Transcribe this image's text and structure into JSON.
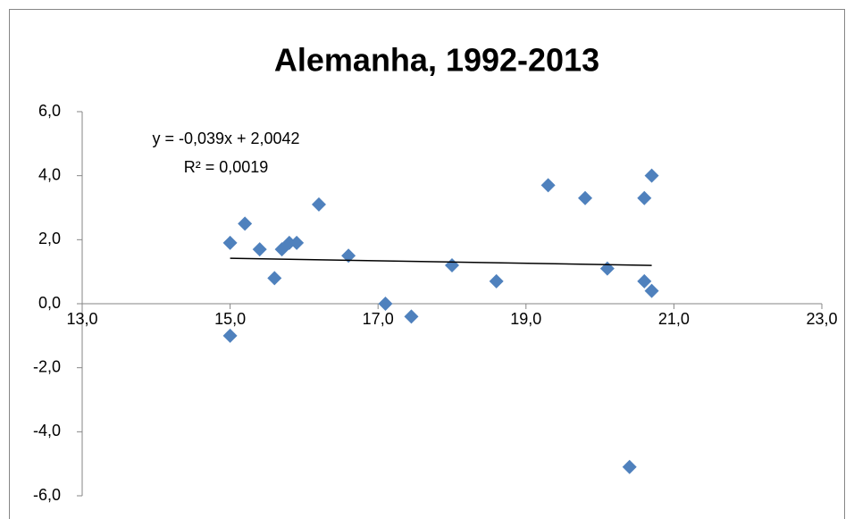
{
  "chart_data": {
    "type": "scatter",
    "title": "Alemanha, 1992-2013",
    "color": "#4f81bd",
    "x": [
      15.0,
      15.2,
      15.4,
      15.6,
      15.7,
      15.8,
      15.9,
      16.2,
      16.6,
      17.1,
      17.45,
      18.0,
      18.6,
      19.3,
      19.8,
      20.1,
      20.4,
      20.6,
      20.6,
      20.7,
      20.7,
      15.0
    ],
    "values": [
      1.9,
      2.5,
      1.7,
      0.8,
      1.7,
      1.9,
      1.9,
      3.1,
      1.5,
      0.0,
      -0.4,
      1.2,
      0.7,
      3.7,
      3.3,
      1.1,
      -5.1,
      3.3,
      0.7,
      0.4,
      4.0,
      -1.0
    ],
    "xlim": [
      13,
      23
    ],
    "xticks": [
      {
        "value": 13,
        "label": "13,0"
      },
      {
        "value": 15,
        "label": "15,0"
      },
      {
        "value": 17,
        "label": "17,0"
      },
      {
        "value": 19,
        "label": "19,0"
      },
      {
        "value": 21,
        "label": "21,0"
      },
      {
        "value": 23,
        "label": "23,0"
      }
    ],
    "ylim": [
      -6,
      6
    ],
    "yticks": [
      {
        "value": 6,
        "label": "6,0"
      },
      {
        "value": 4,
        "label": "4,0"
      },
      {
        "value": 2,
        "label": "2,0"
      },
      {
        "value": 0,
        "label": "0,0"
      },
      {
        "value": -2,
        "label": "-2,0"
      },
      {
        "value": -4,
        "label": "-4,0"
      },
      {
        "value": -6,
        "label": "-6,0"
      }
    ],
    "trendline": {
      "label": "y = -0,039x + 2,0042",
      "r2_label": "R² = 0,0019",
      "slope": -0.039,
      "intercept": 2.0042
    }
  }
}
